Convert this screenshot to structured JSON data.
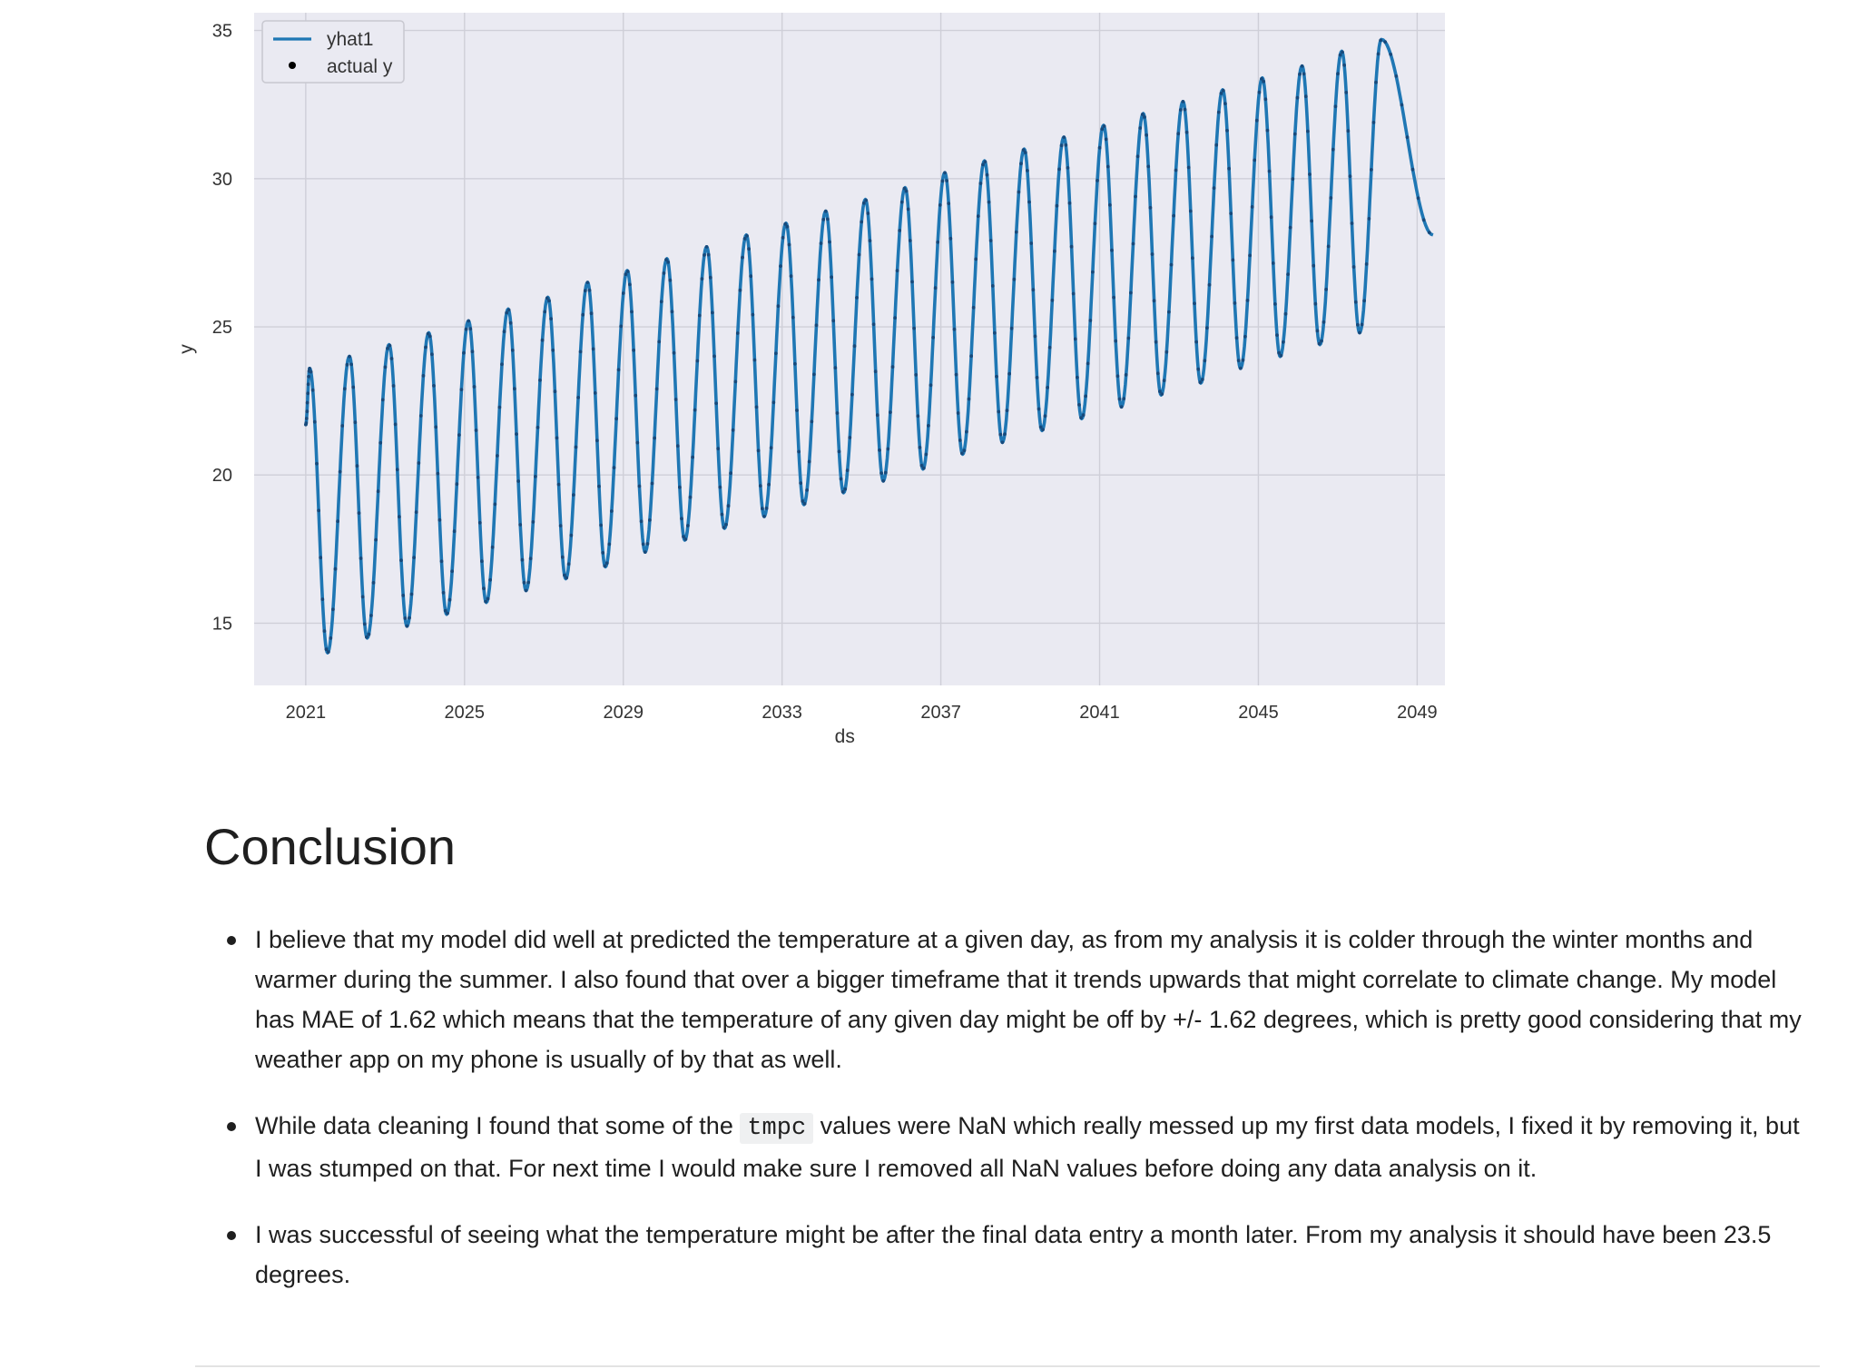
{
  "chart_data": {
    "type": "line",
    "title": "",
    "xlabel": "ds",
    "ylabel": "y",
    "xlim": [
      2019.7,
      2049.7
    ],
    "ylim": [
      12.9,
      35.6
    ],
    "x_ticks": [
      2021,
      2025,
      2029,
      2033,
      2037,
      2041,
      2045,
      2049
    ],
    "x_tick_labels": [
      "2021",
      "2025",
      "2029",
      "2033",
      "2037",
      "2041",
      "2045",
      "2049"
    ],
    "y_ticks": [
      15,
      20,
      25,
      30,
      35
    ],
    "y_tick_labels": [
      "15",
      "20",
      "25",
      "30",
      "35"
    ],
    "grid": true,
    "legend_position": "top-left",
    "background_color": "#eaeaf2",
    "line_color": "#1f77b4",
    "marker_color": "#000000",
    "series": [
      {
        "name": "yhat1",
        "kind": "line",
        "x_start": 2021.0,
        "x_end": 2049.4,
        "peaks": [
          {
            "x": 2021.1,
            "y": 23.6
          },
          {
            "x": 2022.1,
            "y": 24.0
          },
          {
            "x": 2023.1,
            "y": 24.4
          },
          {
            "x": 2024.1,
            "y": 24.8
          },
          {
            "x": 2025.1,
            "y": 25.2
          },
          {
            "x": 2026.1,
            "y": 25.6
          },
          {
            "x": 2027.1,
            "y": 26.0
          },
          {
            "x": 2028.1,
            "y": 26.5
          },
          {
            "x": 2029.1,
            "y": 26.9
          },
          {
            "x": 2030.1,
            "y": 27.3
          },
          {
            "x": 2031.1,
            "y": 27.7
          },
          {
            "x": 2032.1,
            "y": 28.1
          },
          {
            "x": 2033.1,
            "y": 28.5
          },
          {
            "x": 2034.1,
            "y": 28.9
          },
          {
            "x": 2035.1,
            "y": 29.3
          },
          {
            "x": 2036.1,
            "y": 29.7
          },
          {
            "x": 2037.1,
            "y": 30.2
          },
          {
            "x": 2038.1,
            "y": 30.6
          },
          {
            "x": 2039.1,
            "y": 31.0
          },
          {
            "x": 2040.1,
            "y": 31.4
          },
          {
            "x": 2041.1,
            "y": 31.8
          },
          {
            "x": 2042.1,
            "y": 32.2
          },
          {
            "x": 2043.1,
            "y": 32.6
          },
          {
            "x": 2044.1,
            "y": 33.0
          },
          {
            "x": 2045.1,
            "y": 33.4
          },
          {
            "x": 2046.1,
            "y": 33.8
          },
          {
            "x": 2047.1,
            "y": 34.3
          },
          {
            "x": 2048.1,
            "y": 34.7
          }
        ],
        "troughs": [
          {
            "x": 2021.55,
            "y": 14.0
          },
          {
            "x": 2022.55,
            "y": 14.5
          },
          {
            "x": 2023.55,
            "y": 14.9
          },
          {
            "x": 2024.55,
            "y": 15.3
          },
          {
            "x": 2025.55,
            "y": 15.7
          },
          {
            "x": 2026.55,
            "y": 16.1
          },
          {
            "x": 2027.55,
            "y": 16.5
          },
          {
            "x": 2028.55,
            "y": 16.9
          },
          {
            "x": 2029.55,
            "y": 17.4
          },
          {
            "x": 2030.55,
            "y": 17.8
          },
          {
            "x": 2031.55,
            "y": 18.2
          },
          {
            "x": 2032.55,
            "y": 18.6
          },
          {
            "x": 2033.55,
            "y": 19.0
          },
          {
            "x": 2034.55,
            "y": 19.4
          },
          {
            "x": 2035.55,
            "y": 19.8
          },
          {
            "x": 2036.55,
            "y": 20.2
          },
          {
            "x": 2037.55,
            "y": 20.7
          },
          {
            "x": 2038.55,
            "y": 21.1
          },
          {
            "x": 2039.55,
            "y": 21.5
          },
          {
            "x": 2040.55,
            "y": 21.9
          },
          {
            "x": 2041.55,
            "y": 22.3
          },
          {
            "x": 2042.55,
            "y": 22.7
          },
          {
            "x": 2043.55,
            "y": 23.1
          },
          {
            "x": 2044.55,
            "y": 23.6
          },
          {
            "x": 2045.55,
            "y": 24.0
          },
          {
            "x": 2046.55,
            "y": 24.4
          },
          {
            "x": 2047.55,
            "y": 24.8
          }
        ],
        "first_value": {
          "x": 2021.0,
          "y": 21.7
        },
        "last_value": {
          "x": 2049.4,
          "y": 28.1
        }
      },
      {
        "name": "actual y",
        "kind": "scatter",
        "values": []
      }
    ]
  },
  "article": {
    "heading": "Conclusion",
    "bullets": [
      {
        "text": "I believe that my model did well at predicted the temperature at a given day, as from my analysis it is colder through the winter months and warmer during the summer. I also found that over a bigger timeframe that it trends upwards that might correlate to climate change. My model has MAE of 1.62 which means that the temperature of any given day might be off by +/- 1.62 degrees, which is pretty good considering that my weather app on my phone is usually of by that as well."
      },
      {
        "before_code": "While data cleaning I found that some of the ",
        "code": "tmpc",
        "after_code": " values were NaN which really messed up my first data models, I fixed it by removing it, but I was stumped on that. For next time I would make sure I removed all NaN values before doing any data analysis on it."
      },
      {
        "text": "I was successful of seeing what the temperature might be after the final data entry a month later. From my analysis it should have been 23.5 degrees."
      }
    ]
  }
}
